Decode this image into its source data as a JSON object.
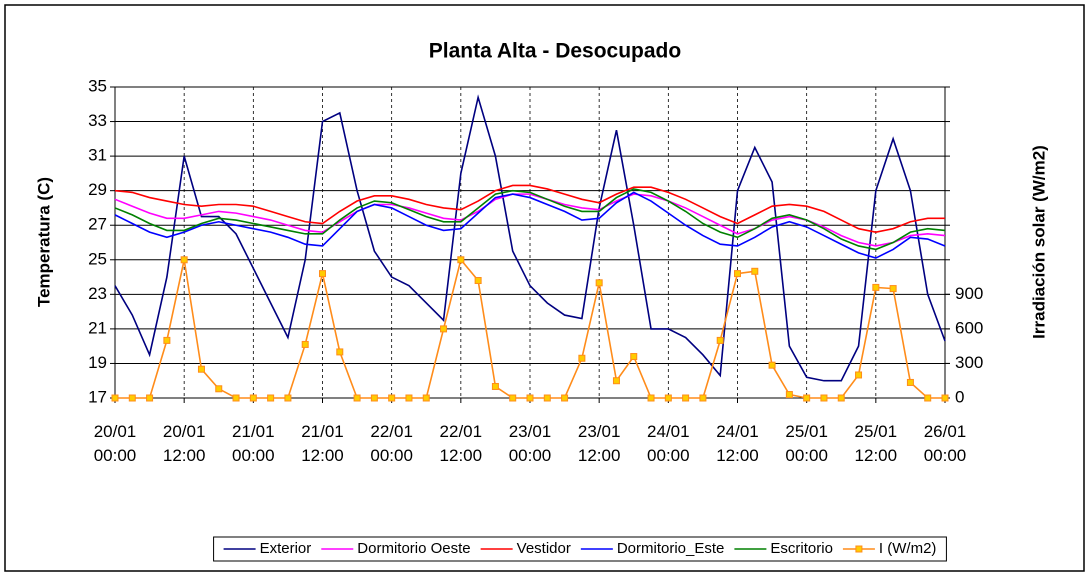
{
  "chart_data": {
    "type": "line",
    "title": "Planta Alta - Desocupado",
    "y_label": "Temperatura (C)",
    "y2_label": "Irradiación solar (W/m2)",
    "x": [
      0,
      3,
      6,
      9,
      12,
      15,
      18,
      21,
      24,
      27,
      30,
      33,
      36,
      39,
      42,
      45,
      48,
      51,
      54,
      57,
      60,
      63,
      66,
      69,
      72,
      75,
      78,
      81,
      84,
      87,
      90,
      93,
      96,
      99,
      102,
      105,
      108,
      111,
      114,
      117,
      120,
      123,
      126,
      129,
      132,
      135,
      138,
      141,
      144
    ],
    "xlim": [
      0,
      144
    ],
    "xticks": [
      {
        "value": 0,
        "label": "20/01 00:00"
      },
      {
        "value": 12,
        "label": "20/01 12:00"
      },
      {
        "value": 24,
        "label": "21/01 00:00"
      },
      {
        "value": 36,
        "label": "21/01 12:00"
      },
      {
        "value": 48,
        "label": "22/01 00:00"
      },
      {
        "value": 60,
        "label": "22/01 12:00"
      },
      {
        "value": 72,
        "label": "23/01 00:00"
      },
      {
        "value": 84,
        "label": "23/01 12:00"
      },
      {
        "value": 96,
        "label": "24/01 00:00"
      },
      {
        "value": 108,
        "label": "24/01 12:00"
      },
      {
        "value": 120,
        "label": "25/01 00:00"
      },
      {
        "value": 132,
        "label": "25/01 12:00"
      },
      {
        "value": 144,
        "label": "26/01 00:00"
      }
    ],
    "ylim": [
      17,
      35
    ],
    "yticks": [
      17,
      19,
      21,
      23,
      25,
      27,
      29,
      31,
      33,
      35
    ],
    "y2lim": [
      0,
      2700
    ],
    "y2ticks": [
      0,
      300,
      600,
      900
    ],
    "grid": true,
    "series": [
      {
        "name": "Exterior",
        "color": "#000080",
        "values": [
          23.5,
          21.8,
          19.5,
          24,
          31,
          27.5,
          27.5,
          26.5,
          24.5,
          22.5,
          20.5,
          25,
          33,
          33.5,
          29,
          25.5,
          24,
          23.5,
          22.5,
          21.5,
          30,
          34.4,
          31,
          25.5,
          23.5,
          22.5,
          21.8,
          21.6,
          28,
          32.5,
          27,
          21,
          21,
          20.5,
          19.5,
          18.3,
          29,
          31.5,
          29.5,
          20,
          18.2,
          18,
          18,
          20,
          29,
          32,
          29,
          23,
          20.3
        ]
      },
      {
        "name": "Dormitorio Oeste",
        "color": "#ff00ff",
        "values": [
          28.5,
          28.1,
          27.7,
          27.4,
          27.4,
          27.6,
          27.8,
          27.7,
          27.5,
          27.3,
          27.0,
          26.7,
          26.6,
          27.2,
          27.8,
          28.2,
          28.2,
          28.0,
          27.7,
          27.4,
          27.3,
          27.8,
          28.5,
          28.8,
          28.8,
          28.5,
          28.2,
          28.0,
          27.9,
          28.4,
          28.8,
          28.7,
          28.4,
          28.0,
          27.5,
          27.0,
          26.5,
          26.8,
          27.3,
          27.5,
          27.3,
          26.9,
          26.4,
          26.0,
          25.8,
          26.0,
          26.4,
          26.5,
          26.4
        ]
      },
      {
        "name": "Vestidor",
        "color": "#ff0000",
        "values": [
          29.0,
          28.9,
          28.6,
          28.4,
          28.2,
          28.1,
          28.2,
          28.2,
          28.1,
          27.8,
          27.5,
          27.2,
          27.1,
          27.8,
          28.4,
          28.7,
          28.7,
          28.5,
          28.2,
          28.0,
          27.9,
          28.4,
          29.0,
          29.3,
          29.3,
          29.1,
          28.8,
          28.5,
          28.3,
          28.8,
          29.2,
          29.2,
          28.9,
          28.5,
          28.0,
          27.5,
          27.1,
          27.6,
          28.1,
          28.2,
          28.1,
          27.8,
          27.3,
          26.8,
          26.6,
          26.8,
          27.2,
          27.4,
          27.4
        ]
      },
      {
        "name": "Dormitorio_Este",
        "color": "#0000ff",
        "values": [
          27.6,
          27.1,
          26.6,
          26.3,
          26.6,
          27.0,
          27.2,
          27.0,
          26.8,
          26.6,
          26.3,
          25.9,
          25.8,
          26.8,
          27.8,
          28.2,
          28.0,
          27.5,
          27.0,
          26.7,
          26.8,
          27.7,
          28.6,
          28.8,
          28.6,
          28.2,
          27.8,
          27.3,
          27.4,
          28.3,
          28.9,
          28.4,
          27.7,
          27.0,
          26.4,
          25.9,
          25.8,
          26.3,
          26.9,
          27.2,
          26.9,
          26.4,
          25.9,
          25.4,
          25.1,
          25.6,
          26.3,
          26.2,
          25.8
        ]
      },
      {
        "name": "Escritorio",
        "color": "#008000",
        "values": [
          28.0,
          27.6,
          27.1,
          26.7,
          26.7,
          27.1,
          27.4,
          27.3,
          27.1,
          26.9,
          26.7,
          26.5,
          26.5,
          27.3,
          28.0,
          28.4,
          28.3,
          27.9,
          27.5,
          27.2,
          27.2,
          28.0,
          28.8,
          29.0,
          28.9,
          28.5,
          28.1,
          27.8,
          27.8,
          28.6,
          29.1,
          28.9,
          28.4,
          27.8,
          27.1,
          26.6,
          26.3,
          26.8,
          27.4,
          27.6,
          27.3,
          26.8,
          26.2,
          25.8,
          25.6,
          26.0,
          26.6,
          26.8,
          26.7
        ]
      },
      {
        "name": "I (W/m2)",
        "color": "#ff8c1a",
        "marker_color": "#ffcc00",
        "axis": "y2",
        "values": [
          0,
          0,
          0,
          500,
          1200,
          250,
          80,
          0,
          0,
          0,
          0,
          465,
          1080,
          400,
          0,
          0,
          0,
          0,
          0,
          600,
          1200,
          1020,
          100,
          0,
          0,
          0,
          0,
          345,
          1000,
          150,
          360,
          0,
          0,
          0,
          0,
          500,
          1080,
          1100,
          285,
          30,
          0,
          0,
          0,
          200,
          960,
          950,
          135,
          0,
          0
        ]
      }
    ]
  }
}
